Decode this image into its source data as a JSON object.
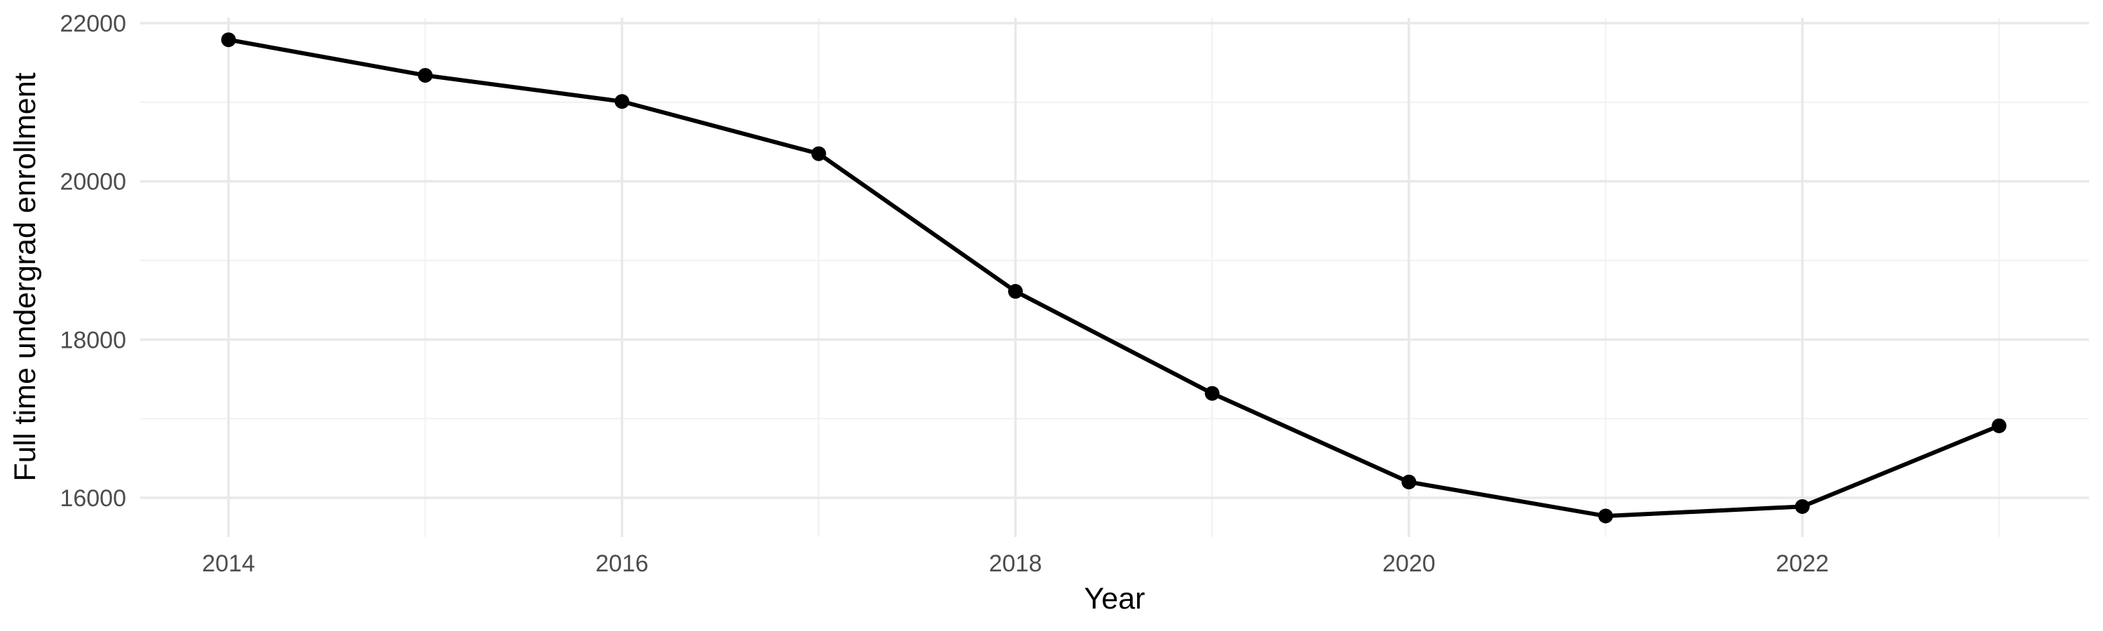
{
  "chart_data": {
    "type": "line",
    "title": "",
    "xlabel": "Year",
    "ylabel": "Full time undergrad enrollment",
    "series": [
      {
        "name": "Full time undergrad enrollment",
        "x": [
          2014,
          2015,
          2016,
          2017,
          2018,
          2019,
          2020,
          2021,
          2022,
          2023
        ],
        "values": [
          21790,
          21340,
          21010,
          20350,
          18610,
          17320,
          16200,
          15770,
          15890,
          16910
        ]
      }
    ],
    "x_ticks_major": [
      2014,
      2016,
      2018,
      2020,
      2022
    ],
    "x_ticks_minor": [
      2015,
      2017,
      2019,
      2021,
      2023
    ],
    "y_ticks_major": [
      16000,
      18000,
      20000,
      22000
    ],
    "y_ticks_minor": [
      17000,
      19000,
      21000
    ],
    "xlim": [
      2013.551,
      2023.457
    ],
    "ylim": [
      15504,
      22071
    ],
    "grid": true,
    "legend": false,
    "colors": {
      "line": "#000000",
      "point": "#000000",
      "grid_major": "#E9E9E9",
      "grid_minor": "#F2F2F2",
      "tick_label": "#4D4D4D",
      "axis_title": "#000000",
      "background": "#FFFFFF"
    }
  }
}
